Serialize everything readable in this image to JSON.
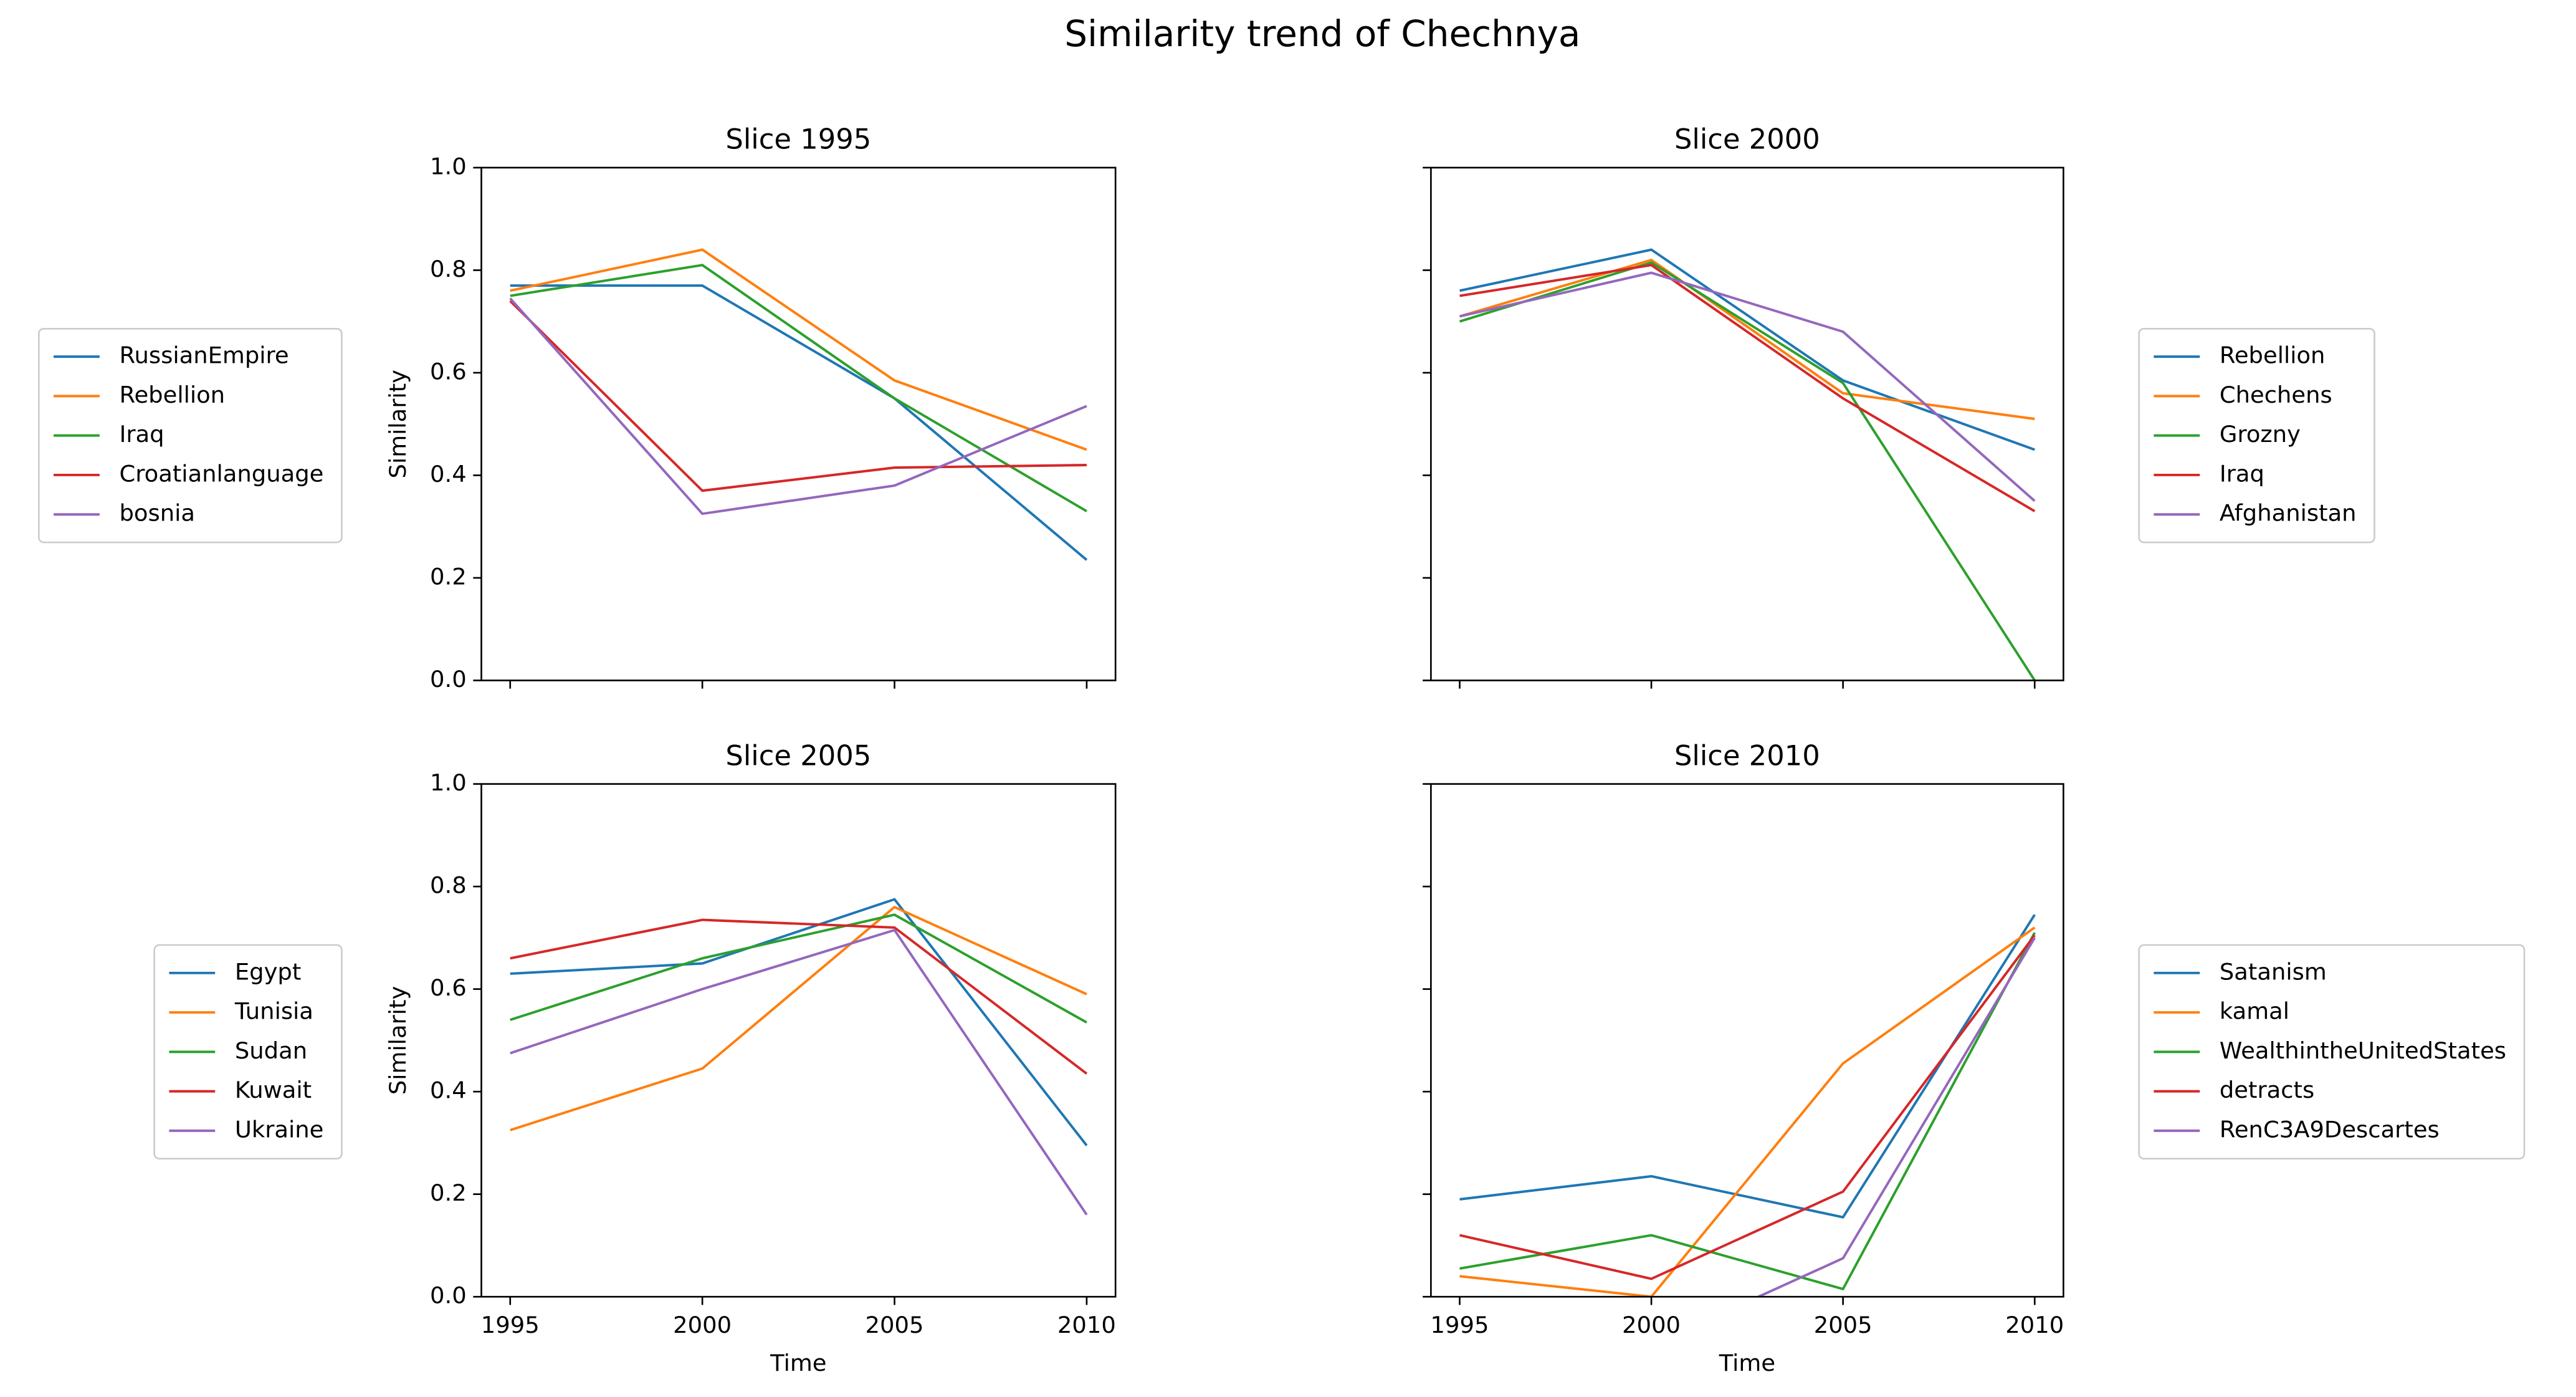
{
  "title": "Similarity trend of Chechnya",
  "chart_data": [
    {
      "type": "line",
      "title": "Slice 1995",
      "ylabel": "Similarity",
      "legend": "left",
      "x": [
        1995,
        2000,
        2005,
        2010
      ],
      "xlim": [
        1994.25,
        2010.75
      ],
      "xticks": [
        1995,
        2000,
        2005,
        2010
      ],
      "show_xticklabels": false,
      "ylim": [
        0,
        1
      ],
      "yticks": [
        {
          "value": 0,
          "label": "0.0"
        },
        0.2,
        0.4,
        0.6,
        0.8,
        {
          "value": 1,
          "label": "1.0"
        }
      ],
      "show_yticklabels": true,
      "series": [
        {
          "name": "RussianEmpire",
          "color": "#1f77b4",
          "values": [
            0.77,
            0.77,
            0.55,
            0.235
          ]
        },
        {
          "name": "Rebellion",
          "color": "#ff7f0e",
          "values": [
            0.76,
            0.84,
            0.585,
            0.45
          ]
        },
        {
          "name": "Iraq",
          "color": "#2ca02c",
          "values": [
            0.75,
            0.81,
            0.55,
            0.33
          ]
        },
        {
          "name": "Croatianlanguage",
          "color": "#d62728",
          "values": [
            0.74,
            0.37,
            0.415,
            0.42
          ]
        },
        {
          "name": "bosnia",
          "color": "#9467bd",
          "values": [
            0.745,
            0.325,
            0.38,
            0.535
          ]
        }
      ]
    },
    {
      "type": "line",
      "title": "Slice 2000",
      "legend": "right",
      "x": [
        1995,
        2000,
        2005,
        2010
      ],
      "xlim": [
        1994.25,
        2010.75
      ],
      "xticks": [
        1995,
        2000,
        2005,
        2010
      ],
      "show_xticklabels": false,
      "ylim": [
        0,
        1
      ],
      "yticks": [
        0,
        0.2,
        0.4,
        0.6,
        0.8,
        1
      ],
      "show_yticklabels": false,
      "series": [
        {
          "name": "Rebellion",
          "color": "#1f77b4",
          "values": [
            0.76,
            0.84,
            0.585,
            0.45
          ]
        },
        {
          "name": "Chechens",
          "color": "#ff7f0e",
          "values": [
            0.71,
            0.82,
            0.56,
            0.51
          ]
        },
        {
          "name": "Grozny",
          "color": "#2ca02c",
          "values": [
            0.7,
            0.815,
            0.58,
            0.0
          ]
        },
        {
          "name": "Iraq",
          "color": "#d62728",
          "values": [
            0.75,
            0.81,
            0.55,
            0.33
          ]
        },
        {
          "name": "Afghanistan",
          "color": "#9467bd",
          "values": [
            0.71,
            0.795,
            0.68,
            0.35
          ]
        }
      ]
    },
    {
      "type": "line",
      "title": "Slice 2005",
      "ylabel": "Similarity",
      "xlabel": "Time",
      "legend": "left",
      "x": [
        1995,
        2000,
        2005,
        2010
      ],
      "xlim": [
        1994.25,
        2010.75
      ],
      "xticks": [
        1995,
        2000,
        2005,
        2010
      ],
      "show_xticklabels": true,
      "ylim": [
        0,
        1
      ],
      "yticks": [
        {
          "value": 0,
          "label": "0.0"
        },
        0.2,
        0.4,
        0.6,
        0.8,
        {
          "value": 1,
          "label": "1.0"
        }
      ],
      "show_yticklabels": true,
      "series": [
        {
          "name": "Egypt",
          "color": "#1f77b4",
          "values": [
            0.63,
            0.65,
            0.775,
            0.295
          ]
        },
        {
          "name": "Tunisia",
          "color": "#ff7f0e",
          "values": [
            0.325,
            0.445,
            0.76,
            0.59
          ]
        },
        {
          "name": "Sudan",
          "color": "#2ca02c",
          "values": [
            0.54,
            0.66,
            0.745,
            0.535
          ]
        },
        {
          "name": "Kuwait",
          "color": "#d62728",
          "values": [
            0.66,
            0.735,
            0.72,
            0.435
          ]
        },
        {
          "name": "Ukraine",
          "color": "#9467bd",
          "values": [
            0.475,
            0.6,
            0.715,
            0.16
          ]
        }
      ]
    },
    {
      "type": "line",
      "title": "Slice 2010",
      "xlabel": "Time",
      "legend": "right",
      "x": [
        1995,
        2000,
        2005,
        2010
      ],
      "xlim": [
        1994.25,
        2010.75
      ],
      "xticks": [
        1995,
        2000,
        2005,
        2010
      ],
      "show_xticklabels": true,
      "ylim": [
        0,
        1
      ],
      "yticks": [
        0,
        0.2,
        0.4,
        0.6,
        0.8,
        1
      ],
      "show_yticklabels": false,
      "series": [
        {
          "name": "Satanism",
          "color": "#1f77b4",
          "values": [
            0.19,
            0.235,
            0.155,
            0.745
          ]
        },
        {
          "name": "kamal",
          "color": "#ff7f0e",
          "values": [
            0.04,
            0.0,
            0.455,
            0.72
          ]
        },
        {
          "name": "WealthintheUnitedStates",
          "color": "#2ca02c",
          "values": [
            0.055,
            0.12,
            0.015,
            0.71
          ]
        },
        {
          "name": "detracts",
          "color": "#d62728",
          "values": [
            0.12,
            0.035,
            0.205,
            0.705
          ]
        },
        {
          "name": "RenC3A9Descartes",
          "color": "#9467bd",
          "values": [
            -0.1,
            -0.095,
            0.075,
            0.7
          ]
        }
      ]
    }
  ]
}
